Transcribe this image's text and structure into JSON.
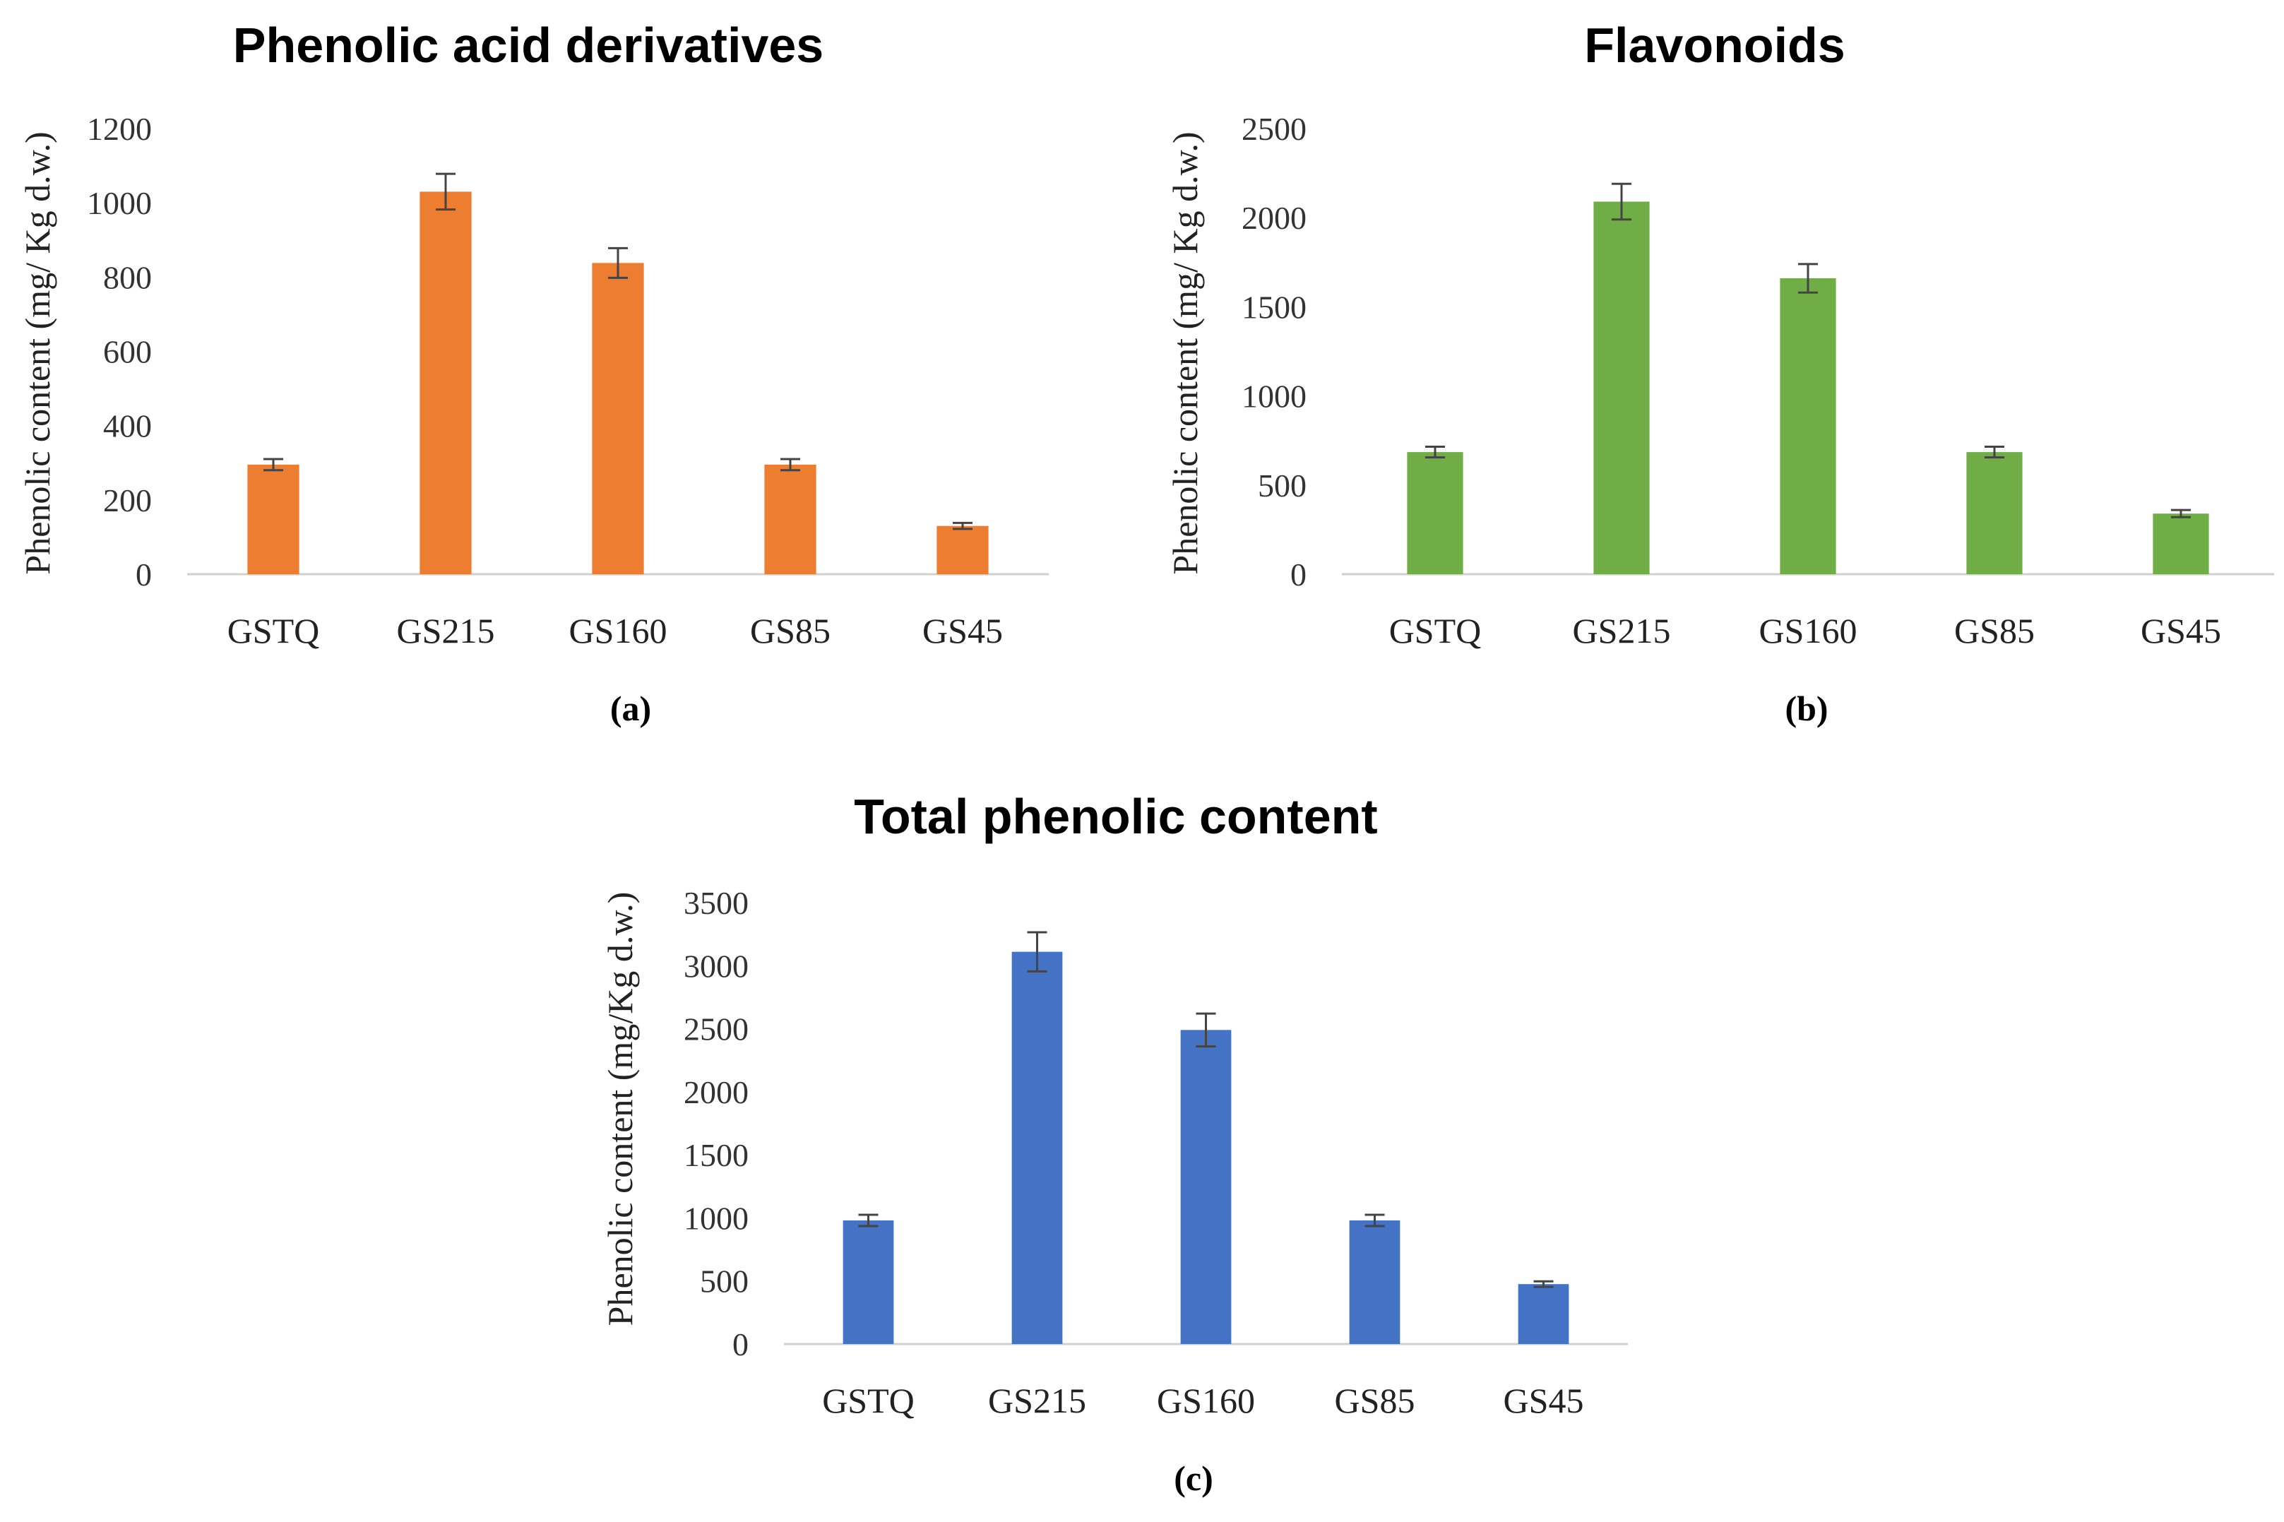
{
  "chart_data": [
    {
      "type": "bar",
      "title": "Phenolic acid derivatives",
      "caption": "(a)",
      "xlabel": "",
      "ylabel": "Phenolic content  (mg/ Kg d.w.)",
      "categories": [
        "GSTQ",
        "GS215",
        "GS160",
        "GS85",
        "GS45"
      ],
      "values": [
        295,
        1030,
        838,
        295,
        130
      ],
      "errors": [
        15,
        48,
        40,
        15,
        8
      ],
      "ylim": [
        0,
        1200
      ],
      "yticks": [
        0,
        200,
        400,
        600,
        800,
        1000,
        1200
      ],
      "grid": false,
      "color": "#ED7D31"
    },
    {
      "type": "bar",
      "title": "Flavonoids",
      "caption": "(b)",
      "xlabel": "",
      "ylabel": "Phenolic content  (mg/ Kg d.w.)",
      "categories": [
        "GSTQ",
        "GS215",
        "GS160",
        "GS85",
        "GS45"
      ],
      "values": [
        685,
        2090,
        1660,
        685,
        340
      ],
      "errors": [
        30,
        100,
        80,
        30,
        20
      ],
      "ylim": [
        0,
        2500
      ],
      "yticks": [
        0,
        500,
        1000,
        1500,
        2000,
        2500
      ],
      "grid": false,
      "color": "#70AD47"
    },
    {
      "type": "bar",
      "title": "Total phenolic content",
      "caption": "(c)",
      "xlabel": "",
      "ylabel": "Phenolic content (mg/Kg d.w.)",
      "categories": [
        "GSTQ",
        "GS215",
        "GS160",
        "GS85",
        "GS45"
      ],
      "values": [
        980,
        3110,
        2490,
        980,
        475
      ],
      "errors": [
        45,
        155,
        130,
        45,
        22
      ],
      "ylim": [
        0,
        3500
      ],
      "yticks": [
        0,
        500,
        1000,
        1500,
        2000,
        2500,
        3000,
        3500
      ],
      "grid": false,
      "color": "#4472C4"
    }
  ]
}
